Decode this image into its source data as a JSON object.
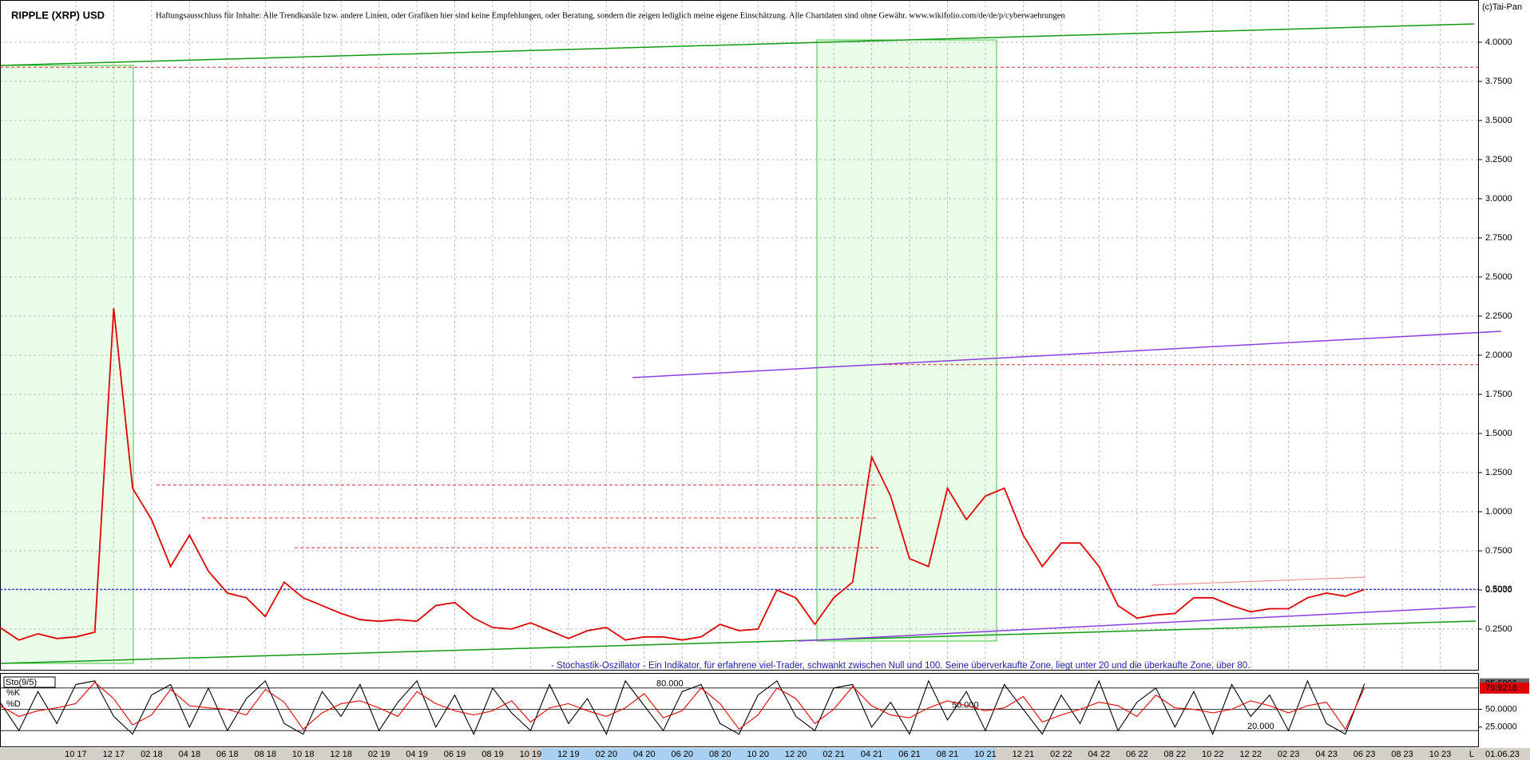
{
  "chart_data": [
    {
      "type": "line",
      "title": "RIPPLE (XRP) USD",
      "subtitle": "Haftungsausschluss für Inhalte: Alle Trendkanäle bzw. andere Linien, oder Grafiken hier sind keine Empfehlungen, oder Beratung, sondern die zeigen lediglich meine eigene Einschätzung. Alle Chartdaten sind ohne Gewähr. www.wikifolio.com/de/de/p/cyberwaehrungen",
      "source": "(c)Tai-Pan",
      "axis_end": "L",
      "date": "01.06.23",
      "categories": [
        null,
        null,
        null,
        null,
        "10 17",
        null,
        "12 17",
        null,
        "02 18",
        null,
        "04 18",
        null,
        "06 18",
        null,
        "08 18",
        null,
        "10 18",
        null,
        "12 18",
        null,
        "02 19",
        null,
        "04 19",
        null,
        "06 19",
        null,
        "08 19",
        null,
        "10 19",
        null,
        "12 19",
        null,
        "02 20",
        null,
        "04 20",
        null,
        "06 20",
        null,
        "08 20",
        null,
        "10 20",
        null,
        "12 20",
        null,
        "02 21",
        null,
        "04 21",
        null,
        "06 21",
        null,
        "08 21",
        null,
        "10 21",
        null,
        "12 21",
        null,
        "02 22",
        null,
        "04 22",
        null,
        "06 22",
        null,
        "08 22",
        null,
        "10 22",
        null,
        "12 22",
        null,
        "02 23",
        null,
        "04 23",
        null,
        "06 23",
        null,
        "08 23",
        null,
        "10 23",
        null,
        null
      ],
      "series": [
        {
          "color": "#e00000",
          "values": [
            0.26,
            0.18,
            0.22,
            0.19,
            0.2,
            0.23,
            2.3,
            1.15,
            0.95,
            0.65,
            0.85,
            0.62,
            0.48,
            0.45,
            0.33,
            0.55,
            0.45,
            0.4,
            0.35,
            0.31,
            0.3,
            0.31,
            0.3,
            0.4,
            0.42,
            0.32,
            0.26,
            0.25,
            0.29,
            0.24,
            0.19,
            0.24,
            0.26,
            0.18,
            0.2,
            0.2,
            0.18,
            0.2,
            0.28,
            0.24,
            0.25,
            0.5,
            0.45,
            0.28,
            0.45,
            0.55,
            1.35,
            1.1,
            0.7,
            0.65,
            1.15,
            0.95,
            1.1,
            1.15,
            0.85,
            0.65,
            0.8,
            0.8,
            0.65,
            0.4,
            0.32,
            0.34,
            0.35,
            0.45,
            0.45,
            0.4,
            0.36,
            0.38,
            0.38,
            0.45,
            0.48,
            0.46,
            0.5036,
            null,
            null,
            null,
            null,
            null,
            null
          ]
        }
      ],
      "ylim": [
        0,
        4.27
      ],
      "yticks": [
        {
          "value": 0.25,
          "label": "0.2500"
        },
        {
          "value": 0.5,
          "label": "0.5000"
        },
        {
          "value": 0.75,
          "label": "0.7500"
        },
        {
          "value": 1,
          "label": "1.0000"
        },
        {
          "value": 1.25,
          "label": "1.2500"
        },
        {
          "value": 1.5,
          "label": "1.5000"
        },
        {
          "value": 1.75,
          "label": "1.7500"
        },
        {
          "value": 2,
          "label": "2.0000"
        },
        {
          "value": 2.25,
          "label": "2.2500"
        },
        {
          "value": 2.5,
          "label": "2.5000"
        },
        {
          "value": 2.75,
          "label": "2.7500"
        },
        {
          "value": 3,
          "label": "3.0000"
        },
        {
          "value": 3.25,
          "label": "3.2500"
        },
        {
          "value": 3.5,
          "label": "3.5000"
        },
        {
          "value": 3.75,
          "label": "3.7500"
        },
        {
          "value": 4,
          "label": "4.0000"
        }
      ],
      "grid": true,
      "levels": [
        3.84,
        1.94,
        1.17,
        0.96,
        0.77
      ],
      "level_color": "#e03030",
      "price_marker": 0.5036,
      "price_marker_color": "#2030e0"
    },
    {
      "type": "line",
      "title": "Sto(9/5)",
      "annotation": "- Stochastik-Oszillator - Ein Indikator, für erfahrene viel-Trader, schwankt zwischen Null und 100. Seine überverkaufte Zone, liegt unter 20 und die überkaufte Zone, über 80.",
      "series": [
        {
          "name": "%K",
          "color": "#000000",
          "values": [
            60,
            20,
            75,
            30,
            85,
            90,
            40,
            15,
            70,
            85,
            25,
            80,
            20,
            65,
            90,
            30,
            15,
            75,
            40,
            85,
            20,
            60,
            90,
            25,
            70,
            15,
            80,
            45,
            20,
            85,
            30,
            65,
            15,
            90,
            55,
            20,
            75,
            85,
            30,
            15,
            70,
            90,
            40,
            20,
            80,
            85,
            25,
            60,
            15,
            90,
            35,
            75,
            20,
            85,
            50,
            15,
            70,
            30,
            90,
            20,
            60,
            80,
            25,
            75,
            15,
            85,
            40,
            70,
            20,
            90,
            30,
            15,
            85.6896,
            null,
            null,
            null,
            null,
            null,
            null
          ]
        },
        {
          "name": "%D",
          "color": "#e00000",
          "values": [
            55,
            40,
            48,
            52,
            58,
            88,
            65,
            28,
            42,
            78,
            55,
            52,
            50,
            42,
            78,
            60,
            22,
            45,
            58,
            62,
            52,
            40,
            75,
            58,
            48,
            42,
            48,
            62,
            32,
            52,
            58,
            48,
            40,
            52,
            72,
            38,
            48,
            80,
            58,
            22,
            42,
            80,
            65,
            30,
            50,
            82,
            55,
            42,
            38,
            52,
            62,
            55,
            48,
            52,
            68,
            32,
            42,
            50,
            60,
            55,
            40,
            70,
            52,
            50,
            45,
            50,
            62,
            55,
            45,
            55,
            60,
            22,
            79.9218,
            null,
            null,
            null,
            null,
            null,
            null
          ]
        }
      ],
      "ylim": [
        0,
        100
      ],
      "yticks": [
        {
          "value": 25,
          "label": "25.0000"
        },
        {
          "value": 50,
          "label": "50.0000"
        }
      ],
      "levels": [
        {
          "value": 80,
          "label": "80.000"
        },
        {
          "value": 50,
          "label": "50.000"
        },
        {
          "value": 20,
          "label": "20.000"
        }
      ]
    }
  ]
}
